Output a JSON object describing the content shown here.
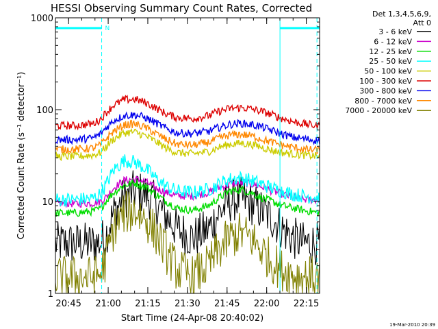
{
  "chart_data": {
    "type": "line",
    "title": "HESSI Observing Summary Count Rates, Corrected",
    "xlabel": "Start Time (24-Apr-08 20:40:02)",
    "ylabel": "Corrected Count Rate (s⁻¹ detector⁻¹)",
    "yscale": "log",
    "ylim": [
      1,
      1000
    ],
    "xlim_minutes_after_start": [
      0,
      100
    ],
    "x_tick_labels": [
      "20:45",
      "21:00",
      "21:15",
      "21:30",
      "21:45",
      "22:00",
      "22:15"
    ],
    "y_tick_labels": [
      "1",
      "10",
      "100",
      "1000"
    ],
    "legend_header": [
      "Det 1,3,4,5,6,9,",
      "Att 0"
    ],
    "legend_position": "right-outside",
    "footer_date": "19-Mar-2010 20:39",
    "annotations": {
      "night_marker_label": "N",
      "night_bars_minutes": [
        [
          0,
          17.5
        ],
        [
          85,
          100
        ]
      ],
      "night_dashed_minutes": [
        17.5,
        99
      ],
      "night_solid_minutes": [
        85
      ]
    },
    "series": [
      {
        "name": "3 - 6 keV",
        "color": "#000000",
        "x": [
          0,
          8,
          14,
          17,
          19,
          22,
          26,
          30,
          34,
          38,
          42,
          46,
          52,
          58,
          62,
          66,
          70,
          74,
          78,
          82,
          86,
          90,
          94,
          100
        ],
        "y": [
          3.5,
          3.5,
          3.5,
          3.6,
          4.2,
          7.5,
          11,
          13,
          12,
          9.5,
          7,
          5,
          4,
          5,
          7.5,
          10,
          11,
          9.5,
          8,
          6.5,
          5,
          4,
          3.5,
          3.5
        ]
      },
      {
        "name": "6 - 12 keV",
        "color": "#cc00cc",
        "x": [
          0,
          8,
          14,
          17,
          19,
          22,
          26,
          30,
          34,
          38,
          42,
          46,
          52,
          58,
          62,
          66,
          70,
          74,
          78,
          82,
          86,
          90,
          94,
          100
        ],
        "y": [
          9.5,
          9.5,
          9.6,
          10,
          11,
          14,
          17,
          17.5,
          16.5,
          14,
          12.5,
          11.5,
          11.5,
          12.5,
          14,
          15.5,
          16,
          15.5,
          14.5,
          13,
          12,
          11,
          10.5,
          10.5
        ]
      },
      {
        "name": "12 - 25 keV",
        "color": "#00dd00",
        "x": [
          0,
          8,
          14,
          17,
          19,
          22,
          26,
          30,
          34,
          38,
          42,
          46,
          52,
          58,
          62,
          66,
          70,
          74,
          78,
          82,
          86,
          90,
          94,
          100
        ],
        "y": [
          7.5,
          7.5,
          7.8,
          8.3,
          10,
          12.5,
          15,
          16,
          14.5,
          12,
          10,
          8.5,
          8,
          9,
          11,
          13,
          13.5,
          12.5,
          11,
          10,
          9,
          8.5,
          8,
          7.5
        ]
      },
      {
        "name": "25 - 50 keV",
        "color": "#00ffff",
        "x": [
          0,
          8,
          14,
          17,
          19,
          22,
          26,
          30,
          34,
          38,
          42,
          46,
          52,
          58,
          62,
          66,
          70,
          74,
          78,
          82,
          86,
          90,
          94,
          100
        ],
        "y": [
          10.5,
          10.5,
          10.8,
          12,
          15,
          22,
          28,
          27,
          23,
          18,
          14.5,
          13,
          12.5,
          13.5,
          15.5,
          17.5,
          18,
          17,
          15.5,
          14,
          13,
          12,
          11.5,
          11
        ]
      },
      {
        "name": "50 - 100 keV",
        "color": "#cccc00",
        "x": [
          0,
          8,
          14,
          17,
          19,
          22,
          26,
          30,
          34,
          38,
          42,
          46,
          52,
          58,
          62,
          66,
          70,
          74,
          78,
          82,
          86,
          90,
          94,
          100
        ],
        "y": [
          31,
          31,
          32,
          34,
          39,
          48,
          56,
          57,
          52,
          45,
          38,
          34,
          33,
          35,
          39,
          42,
          43,
          42,
          39,
          36,
          34,
          33,
          32,
          31
        ]
      },
      {
        "name": "100 - 300 keV",
        "color": "#dd0000",
        "x": [
          0,
          8,
          14,
          17,
          19,
          22,
          26,
          30,
          34,
          38,
          42,
          46,
          52,
          58,
          62,
          66,
          70,
          74,
          78,
          82,
          86,
          90,
          94,
          100
        ],
        "y": [
          67,
          67,
          70,
          78,
          92,
          112,
          128,
          130,
          120,
          104,
          90,
          82,
          80,
          86,
          96,
          103,
          105,
          102,
          96,
          88,
          80,
          74,
          70,
          66
        ]
      },
      {
        "name": "300 - 800 keV",
        "color": "#0000ee",
        "x": [
          0,
          8,
          14,
          17,
          19,
          22,
          26,
          30,
          34,
          38,
          42,
          46,
          52,
          58,
          62,
          66,
          70,
          74,
          78,
          82,
          86,
          90,
          94,
          100
        ],
        "y": [
          47,
          47,
          49,
          54,
          63,
          76,
          86,
          88,
          82,
          72,
          62,
          56,
          55,
          58,
          64,
          69,
          71,
          69,
          65,
          59,
          54,
          50,
          48,
          46
        ]
      },
      {
        "name": "800 - 7000 keV",
        "color": "#ff8800",
        "x": [
          0,
          8,
          14,
          17,
          19,
          22,
          26,
          30,
          34,
          38,
          42,
          46,
          52,
          58,
          62,
          66,
          70,
          74,
          78,
          82,
          86,
          90,
          94,
          100
        ],
        "y": [
          37,
          37,
          38,
          41,
          48,
          58,
          68,
          70,
          64,
          55,
          47,
          42,
          41,
          44,
          49,
          53,
          54,
          52,
          48,
          44,
          41,
          39,
          37,
          36
        ]
      },
      {
        "name": "7000 - 20000 keV",
        "color": "#808000",
        "x": [
          0,
          8,
          14,
          17,
          19,
          22,
          26,
          30,
          34,
          38,
          42,
          46,
          52,
          58,
          62,
          66,
          70,
          74,
          78,
          82,
          86,
          90,
          94,
          100
        ],
        "y": [
          1.5,
          1.5,
          1.5,
          1.6,
          2.3,
          5,
          7.5,
          8,
          6.5,
          4.5,
          2.8,
          1.8,
          1.5,
          2,
          3,
          4,
          4.5,
          4,
          3,
          2.2,
          1.8,
          1.6,
          1.5,
          1.5
        ]
      }
    ]
  }
}
